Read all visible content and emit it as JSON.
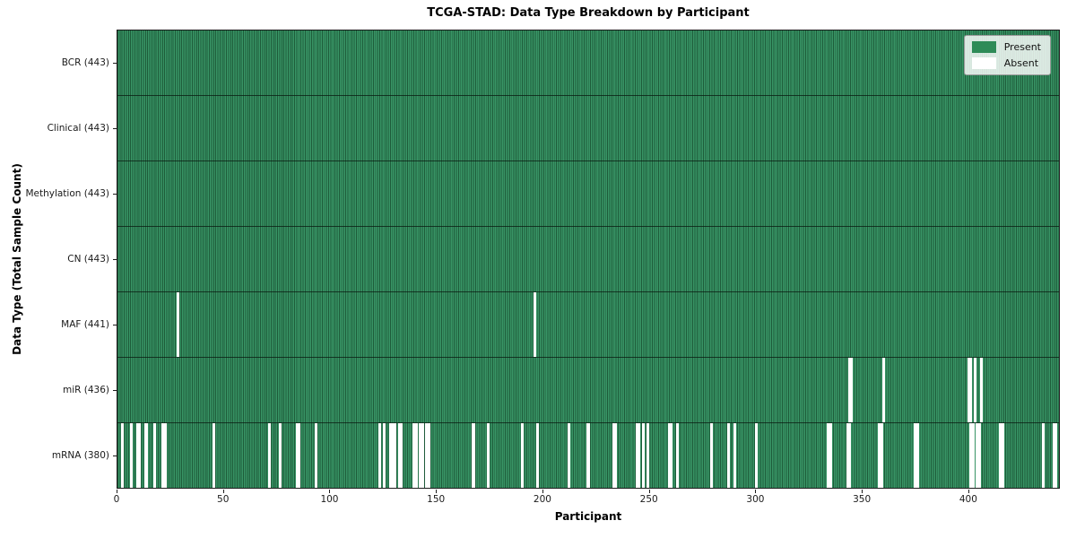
{
  "chart_data": {
    "type": "heatmap",
    "title": "TCGA-STAD: Data Type Breakdown by Participant",
    "xlabel": "Participant",
    "ylabel": "Data Type (Total Sample Count)",
    "x_ticks": [
      0,
      50,
      100,
      150,
      200,
      250,
      300,
      350,
      400
    ],
    "x_range": [
      0,
      443
    ],
    "n_participants": 443,
    "grid": false,
    "legend": {
      "position": "upper right",
      "entries": [
        {
          "label": "Present",
          "color": "#2e8b57"
        },
        {
          "label": "Absent",
          "color": "#ffffff"
        }
      ]
    },
    "colors": {
      "present": "#2e8b57",
      "present_stripe_dark": "#1e5c3a",
      "present_stripe_light": "#389465",
      "absent": "#ffffff"
    },
    "rows": [
      {
        "data_type": "BCR",
        "label": "BCR (443)",
        "present_count": 443,
        "absent_count": 0,
        "absent_participants": []
      },
      {
        "data_type": "Clinical",
        "label": "Clinical (443)",
        "present_count": 443,
        "absent_count": 0,
        "absent_participants": []
      },
      {
        "data_type": "Methylation",
        "label": "Methylation (443)",
        "present_count": 443,
        "absent_count": 0,
        "absent_participants": []
      },
      {
        "data_type": "CN",
        "label": "CN (443)",
        "present_count": 443,
        "absent_count": 0,
        "absent_participants": []
      },
      {
        "data_type": "MAF",
        "label": "MAF (441)",
        "present_count": 441,
        "absent_count": 2,
        "absent_participants": [
          28,
          196
        ]
      },
      {
        "data_type": "miR",
        "label": "miR (436)",
        "present_count": 436,
        "absent_count": 7,
        "absent_participants": [
          344,
          345,
          360,
          400,
          401,
          403,
          406
        ]
      },
      {
        "data_type": "mRNA",
        "label": "mRNA (380)",
        "present_count": 380,
        "absent_count": 63,
        "absent_participants": [
          2,
          6,
          9,
          10,
          13,
          17,
          21,
          22,
          45,
          71,
          76,
          84,
          85,
          93,
          123,
          125,
          128,
          129,
          130,
          132,
          133,
          139,
          140,
          142,
          143,
          145,
          146,
          167,
          174,
          190,
          197,
          212,
          221,
          233,
          234,
          244,
          245,
          247,
          249,
          259,
          260,
          263,
          279,
          287,
          290,
          300,
          334,
          335,
          343,
          344,
          358,
          359,
          375,
          376,
          401,
          402,
          404,
          405,
          415,
          416,
          435,
          440,
          441
        ]
      }
    ]
  }
}
